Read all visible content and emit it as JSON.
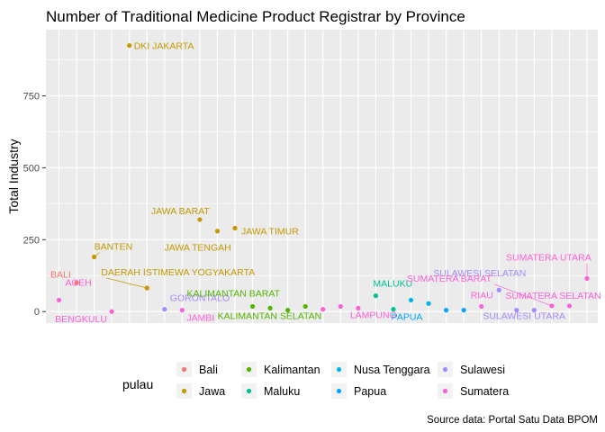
{
  "chart_data": {
    "type": "scatter",
    "title": "Number of Traditional Medicine Product Registrar by Province",
    "xlabel": "",
    "ylabel": "Total Industry",
    "caption": "Source data: Portal Satu Data BPOM",
    "y_ticks": [
      0,
      250,
      500,
      750
    ],
    "ylim": [
      -40,
      980
    ],
    "x_axis": "discrete (province order, no tick labels)",
    "grid": true,
    "legend": {
      "title": "pulau",
      "position": "bottom",
      "entries": [
        {
          "name": "Bali",
          "color": "#F8766D"
        },
        {
          "name": "Jawa",
          "color": "#C49A00"
        },
        {
          "name": "Kalimantan",
          "color": "#53B400"
        },
        {
          "name": "Maluku",
          "color": "#00C094"
        },
        {
          "name": "Nusa Tenggara",
          "color": "#00B6EB"
        },
        {
          "name": "Papua",
          "color": "#06A4FF"
        },
        {
          "name": "Sulawesi",
          "color": "#A58AFF"
        },
        {
          "name": "Sumatera",
          "color": "#FB61D7"
        }
      ]
    },
    "points": [
      {
        "x": 1,
        "y": 40,
        "group": "Sumatera",
        "label": "ACEH"
      },
      {
        "x": 2,
        "y": 100,
        "group": "Bali",
        "label": "BALI"
      },
      {
        "x": 3,
        "y": 190,
        "group": "Jawa",
        "label": "BANTEN"
      },
      {
        "x": 4,
        "y": 0,
        "group": "Sumatera",
        "label": "BENGKULU"
      },
      {
        "x": 5,
        "y": 925,
        "group": "Jawa",
        "label": "DKI JAKARTA"
      },
      {
        "x": 6,
        "y": 82,
        "group": "Jawa",
        "label": "DAERAH ISTIMEWA YOGYAKARTA"
      },
      {
        "x": 7,
        "y": 8,
        "group": "Sulawesi",
        "label": "GORONTALO"
      },
      {
        "x": 8,
        "y": 5,
        "group": "Sumatera",
        "label": "JAMBI"
      },
      {
        "x": 9,
        "y": 320,
        "group": "Jawa",
        "label": "JAWA BARAT"
      },
      {
        "x": 10,
        "y": 280,
        "group": "Jawa",
        "label": "JAWA TENGAH"
      },
      {
        "x": 11,
        "y": 290,
        "group": "Jawa",
        "label": "JAWA TIMUR"
      },
      {
        "x": 12,
        "y": 18,
        "group": "Kalimantan",
        "label": "KALIMANTAN BARAT"
      },
      {
        "x": 13,
        "y": 12,
        "group": "Kalimantan",
        "label": ""
      },
      {
        "x": 14,
        "y": 5,
        "group": "Kalimantan",
        "label": "KALIMANTAN SELATAN"
      },
      {
        "x": 15,
        "y": 18,
        "group": "Kalimantan",
        "label": ""
      },
      {
        "x": 16,
        "y": 8,
        "group": "Sumatera",
        "label": ""
      },
      {
        "x": 17,
        "y": 18,
        "group": "Sumatera",
        "label": ""
      },
      {
        "x": 18,
        "y": 12,
        "group": "Sumatera",
        "label": "LAMPUNG"
      },
      {
        "x": 19,
        "y": 55,
        "group": "Maluku",
        "label": "MALUKU"
      },
      {
        "x": 20,
        "y": 8,
        "group": "Maluku",
        "label": ""
      },
      {
        "x": 21,
        "y": 40,
        "group": "Nusa Tenggara",
        "label": ""
      },
      {
        "x": 22,
        "y": 28,
        "group": "Nusa Tenggara",
        "label": ""
      },
      {
        "x": 23,
        "y": 5,
        "group": "Papua",
        "label": "PAPUA"
      },
      {
        "x": 24,
        "y": 5,
        "group": "Papua",
        "label": ""
      },
      {
        "x": 25,
        "y": 18,
        "group": "Sumatera",
        "label": "RIAU"
      },
      {
        "x": 26,
        "y": 75,
        "group": "Sulawesi",
        "label": "SULAWESI SELATAN"
      },
      {
        "x": 27,
        "y": 5,
        "group": "Sulawesi",
        "label": ""
      },
      {
        "x": 28,
        "y": 5,
        "group": "Sulawesi",
        "label": "SULAWESI UTARA"
      },
      {
        "x": 29,
        "y": 20,
        "group": "Sumatera",
        "label": "SUMATERA BARAT"
      },
      {
        "x": 30,
        "y": 20,
        "group": "Sumatera",
        "label": "SUMATERA SELATAN"
      },
      {
        "x": 31,
        "y": 115,
        "group": "Sumatera",
        "label": "SUMATERA UTARA"
      }
    ]
  }
}
